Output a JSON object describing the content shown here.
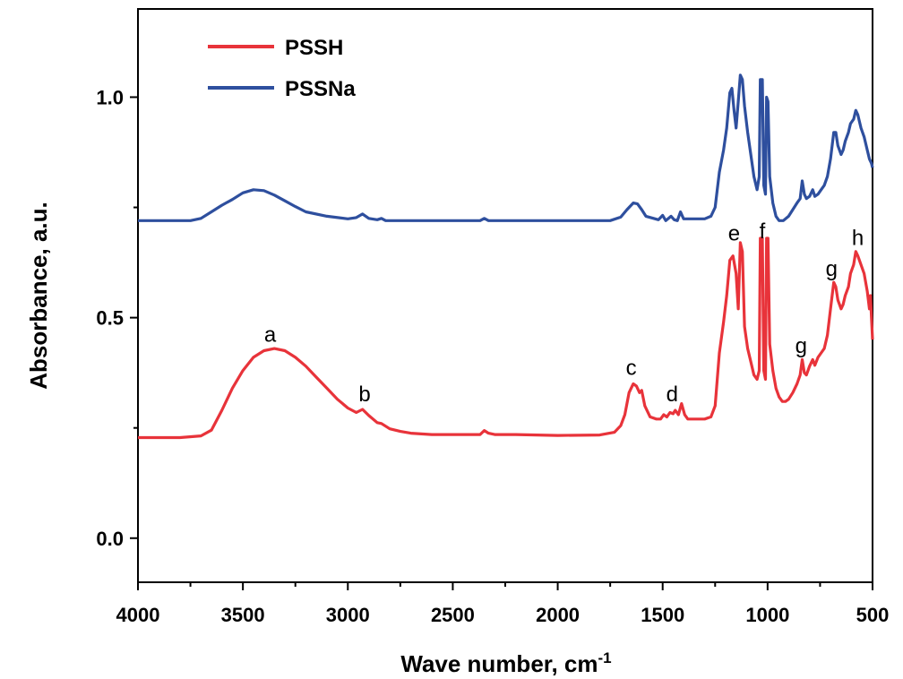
{
  "chart_data": {
    "type": "line",
    "xlabel": "Wave number, cm",
    "xlabel_superscript": "-1",
    "ylabel": "Absorbance, a.u.",
    "xlim": [
      4000,
      500
    ],
    "ylim": [
      -0.1,
      1.2
    ],
    "x_reversed": true,
    "x_ticks": [
      4000,
      3500,
      3000,
      2500,
      2000,
      1500,
      1000,
      500
    ],
    "y_ticks": [
      0.0,
      0.5,
      1.0
    ],
    "y_tick_labels": [
      "0.0",
      "0.5",
      "1.0"
    ],
    "grid": false,
    "legend_position": "top-left",
    "series": [
      {
        "name": "PSSH",
        "color": "#e8333a",
        "points": [
          [
            4000,
            0.228
          ],
          [
            3800,
            0.228
          ],
          [
            3700,
            0.232
          ],
          [
            3650,
            0.245
          ],
          [
            3600,
            0.29
          ],
          [
            3550,
            0.34
          ],
          [
            3500,
            0.38
          ],
          [
            3450,
            0.41
          ],
          [
            3400,
            0.425
          ],
          [
            3350,
            0.43
          ],
          [
            3300,
            0.425
          ],
          [
            3250,
            0.41
          ],
          [
            3200,
            0.39
          ],
          [
            3150,
            0.365
          ],
          [
            3100,
            0.34
          ],
          [
            3050,
            0.315
          ],
          [
            3000,
            0.295
          ],
          [
            2960,
            0.285
          ],
          [
            2930,
            0.292
          ],
          [
            2900,
            0.278
          ],
          [
            2860,
            0.262
          ],
          [
            2840,
            0.26
          ],
          [
            2800,
            0.248
          ],
          [
            2750,
            0.242
          ],
          [
            2700,
            0.238
          ],
          [
            2600,
            0.235
          ],
          [
            2400,
            0.235
          ],
          [
            2370,
            0.235
          ],
          [
            2350,
            0.244
          ],
          [
            2330,
            0.238
          ],
          [
            2300,
            0.235
          ],
          [
            2200,
            0.235
          ],
          [
            2000,
            0.233
          ],
          [
            1800,
            0.234
          ],
          [
            1730,
            0.24
          ],
          [
            1700,
            0.255
          ],
          [
            1680,
            0.28
          ],
          [
            1660,
            0.33
          ],
          [
            1640,
            0.35
          ],
          [
            1625,
            0.345
          ],
          [
            1610,
            0.33
          ],
          [
            1600,
            0.335
          ],
          [
            1585,
            0.3
          ],
          [
            1560,
            0.275
          ],
          [
            1530,
            0.27
          ],
          [
            1510,
            0.27
          ],
          [
            1495,
            0.28
          ],
          [
            1480,
            0.275
          ],
          [
            1465,
            0.285
          ],
          [
            1450,
            0.282
          ],
          [
            1440,
            0.29
          ],
          [
            1425,
            0.28
          ],
          [
            1410,
            0.305
          ],
          [
            1395,
            0.28
          ],
          [
            1380,
            0.27
          ],
          [
            1300,
            0.27
          ],
          [
            1270,
            0.275
          ],
          [
            1250,
            0.3
          ],
          [
            1230,
            0.42
          ],
          [
            1210,
            0.49
          ],
          [
            1195,
            0.55
          ],
          [
            1180,
            0.63
          ],
          [
            1165,
            0.64
          ],
          [
            1150,
            0.6
          ],
          [
            1140,
            0.52
          ],
          [
            1130,
            0.67
          ],
          [
            1120,
            0.65
          ],
          [
            1110,
            0.48
          ],
          [
            1095,
            0.43
          ],
          [
            1080,
            0.4
          ],
          [
            1065,
            0.37
          ],
          [
            1050,
            0.36
          ],
          [
            1040,
            0.38
          ],
          [
            1035,
            0.68
          ],
          [
            1025,
            0.68
          ],
          [
            1018,
            0.38
          ],
          [
            1010,
            0.36
          ],
          [
            1005,
            0.68
          ],
          [
            998,
            0.68
          ],
          [
            990,
            0.44
          ],
          [
            975,
            0.38
          ],
          [
            960,
            0.34
          ],
          [
            945,
            0.32
          ],
          [
            930,
            0.31
          ],
          [
            915,
            0.31
          ],
          [
            900,
            0.315
          ],
          [
            880,
            0.33
          ],
          [
            860,
            0.35
          ],
          [
            845,
            0.37
          ],
          [
            835,
            0.405
          ],
          [
            825,
            0.375
          ],
          [
            815,
            0.37
          ],
          [
            800,
            0.39
          ],
          [
            785,
            0.405
          ],
          [
            775,
            0.392
          ],
          [
            760,
            0.41
          ],
          [
            745,
            0.42
          ],
          [
            730,
            0.43
          ],
          [
            715,
            0.46
          ],
          [
            700,
            0.52
          ],
          [
            685,
            0.58
          ],
          [
            675,
            0.57
          ],
          [
            665,
            0.54
          ],
          [
            650,
            0.52
          ],
          [
            640,
            0.53
          ],
          [
            630,
            0.55
          ],
          [
            615,
            0.57
          ],
          [
            605,
            0.6
          ],
          [
            590,
            0.62
          ],
          [
            580,
            0.65
          ],
          [
            570,
            0.64
          ],
          [
            555,
            0.62
          ],
          [
            540,
            0.6
          ],
          [
            525,
            0.56
          ],
          [
            515,
            0.52
          ],
          [
            510,
            0.55
          ],
          [
            505,
            0.5
          ],
          [
            500,
            0.45
          ]
        ]
      },
      {
        "name": "PSSNa",
        "color": "#2e4f9e",
        "points": [
          [
            4000,
            0.72
          ],
          [
            3750,
            0.72
          ],
          [
            3700,
            0.725
          ],
          [
            3650,
            0.74
          ],
          [
            3600,
            0.755
          ],
          [
            3550,
            0.768
          ],
          [
            3500,
            0.783
          ],
          [
            3450,
            0.79
          ],
          [
            3400,
            0.788
          ],
          [
            3350,
            0.778
          ],
          [
            3300,
            0.765
          ],
          [
            3250,
            0.752
          ],
          [
            3200,
            0.74
          ],
          [
            3100,
            0.73
          ],
          [
            3000,
            0.724
          ],
          [
            2960,
            0.727
          ],
          [
            2930,
            0.735
          ],
          [
            2900,
            0.725
          ],
          [
            2860,
            0.722
          ],
          [
            2840,
            0.725
          ],
          [
            2820,
            0.72
          ],
          [
            2600,
            0.72
          ],
          [
            2370,
            0.72
          ],
          [
            2350,
            0.725
          ],
          [
            2330,
            0.72
          ],
          [
            2000,
            0.72
          ],
          [
            1750,
            0.72
          ],
          [
            1700,
            0.728
          ],
          [
            1670,
            0.745
          ],
          [
            1640,
            0.76
          ],
          [
            1620,
            0.758
          ],
          [
            1600,
            0.745
          ],
          [
            1580,
            0.73
          ],
          [
            1520,
            0.722
          ],
          [
            1500,
            0.732
          ],
          [
            1485,
            0.72
          ],
          [
            1460,
            0.73
          ],
          [
            1445,
            0.722
          ],
          [
            1430,
            0.72
          ],
          [
            1415,
            0.74
          ],
          [
            1400,
            0.724
          ],
          [
            1300,
            0.724
          ],
          [
            1270,
            0.73
          ],
          [
            1250,
            0.75
          ],
          [
            1230,
            0.83
          ],
          [
            1210,
            0.88
          ],
          [
            1195,
            0.93
          ],
          [
            1180,
            1.01
          ],
          [
            1170,
            1.02
          ],
          [
            1160,
            0.97
          ],
          [
            1150,
            0.93
          ],
          [
            1140,
            0.99
          ],
          [
            1130,
            1.05
          ],
          [
            1120,
            1.04
          ],
          [
            1110,
            0.98
          ],
          [
            1095,
            0.92
          ],
          [
            1080,
            0.87
          ],
          [
            1065,
            0.82
          ],
          [
            1050,
            0.79
          ],
          [
            1040,
            0.82
          ],
          [
            1035,
            1.04
          ],
          [
            1025,
            1.04
          ],
          [
            1018,
            0.8
          ],
          [
            1010,
            0.78
          ],
          [
            1005,
            1.0
          ],
          [
            998,
            0.99
          ],
          [
            990,
            0.82
          ],
          [
            975,
            0.76
          ],
          [
            960,
            0.73
          ],
          [
            945,
            0.72
          ],
          [
            925,
            0.72
          ],
          [
            900,
            0.73
          ],
          [
            880,
            0.745
          ],
          [
            860,
            0.76
          ],
          [
            845,
            0.77
          ],
          [
            835,
            0.81
          ],
          [
            825,
            0.78
          ],
          [
            815,
            0.77
          ],
          [
            800,
            0.775
          ],
          [
            785,
            0.79
          ],
          [
            775,
            0.775
          ],
          [
            760,
            0.78
          ],
          [
            745,
            0.79
          ],
          [
            730,
            0.8
          ],
          [
            715,
            0.82
          ],
          [
            700,
            0.86
          ],
          [
            685,
            0.92
          ],
          [
            675,
            0.92
          ],
          [
            665,
            0.89
          ],
          [
            650,
            0.87
          ],
          [
            640,
            0.88
          ],
          [
            630,
            0.9
          ],
          [
            615,
            0.92
          ],
          [
            605,
            0.94
          ],
          [
            590,
            0.95
          ],
          [
            580,
            0.97
          ],
          [
            570,
            0.96
          ],
          [
            555,
            0.93
          ],
          [
            540,
            0.91
          ],
          [
            525,
            0.88
          ],
          [
            515,
            0.86
          ],
          [
            505,
            0.85
          ],
          [
            500,
            0.84
          ]
        ]
      }
    ],
    "annotations": [
      {
        "label": "a",
        "x": 3370,
        "y": 0.445
      },
      {
        "label": "b",
        "x": 2920,
        "y": 0.31
      },
      {
        "label": "c",
        "x": 1650,
        "y": 0.37
      },
      {
        "label": "d",
        "x": 1455,
        "y": 0.31
      },
      {
        "label": "e",
        "x": 1160,
        "y": 0.675
      },
      {
        "label": "f",
        "x": 1025,
        "y": 0.68
      },
      {
        "label": "g",
        "x": 840,
        "y": 0.42
      },
      {
        "label": "g",
        "x": 695,
        "y": 0.595
      },
      {
        "label": "h",
        "x": 570,
        "y": 0.665
      }
    ]
  }
}
